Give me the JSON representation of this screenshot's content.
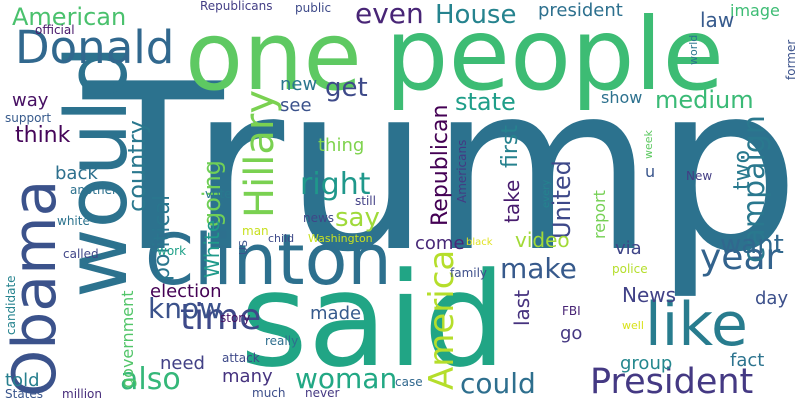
{
  "words": [
    {
      "text": "Trump",
      "color": "#2c728e",
      "rotate": false
    },
    {
      "text": "said",
      "color": "#21a585",
      "rotate": false
    },
    {
      "text": "people",
      "color": "#3dbc74",
      "rotate": false
    },
    {
      "text": "one",
      "color": "#5ec962",
      "rotate": false
    },
    {
      "text": "would",
      "color": "#2c728e",
      "rotate": true
    },
    {
      "text": "Clinton",
      "color": "#2d708e",
      "rotate": false
    },
    {
      "text": "Obama",
      "color": "#3b528b",
      "rotate": true
    },
    {
      "text": "like",
      "color": "#287c8e",
      "rotate": false
    },
    {
      "text": "Donald",
      "color": "#31688e",
      "rotate": false
    },
    {
      "text": "President",
      "color": "#443983",
      "rotate": false
    },
    {
      "text": "Hillary",
      "color": "#7ad151",
      "rotate": true
    },
    {
      "text": "time",
      "color": "#3e4989",
      "rotate": false
    },
    {
      "text": "year",
      "color": "#33638d",
      "rotate": false
    },
    {
      "text": "America",
      "color": "#b5de2b",
      "rotate": true
    },
    {
      "text": "campaign",
      "color": "#2a788e",
      "rotate": true
    },
    {
      "text": "right",
      "color": "#1f988b",
      "rotate": false
    },
    {
      "text": "say",
      "color": "#9fda3a",
      "rotate": false
    },
    {
      "text": "could",
      "color": "#2e6f8e",
      "rotate": false
    },
    {
      "text": "also",
      "color": "#35b779",
      "rotate": false
    },
    {
      "text": "woman",
      "color": "#22a884",
      "rotate": false
    },
    {
      "text": "know",
      "color": "#3b528b",
      "rotate": false
    },
    {
      "text": "make",
      "color": "#375a8c",
      "rotate": false
    },
    {
      "text": "want",
      "color": "#31688e",
      "rotate": false
    },
    {
      "text": "even",
      "color": "#482576",
      "rotate": false
    },
    {
      "text": "House",
      "color": "#25838e",
      "rotate": false
    },
    {
      "text": "state",
      "color": "#1f9e89",
      "rotate": false
    },
    {
      "text": "medium",
      "color": "#3aba76",
      "rotate": false
    },
    {
      "text": "American",
      "color": "#4ac16d",
      "rotate": false
    },
    {
      "text": "get",
      "color": "#3e4a89",
      "rotate": false
    },
    {
      "text": "country",
      "color": "#2a788e",
      "rotate": true
    },
    {
      "text": "going",
      "color": "#70cf57",
      "rotate": true
    },
    {
      "text": "Republican",
      "color": "#440154",
      "rotate": true
    },
    {
      "text": "United",
      "color": "#3e4989",
      "rotate": true
    },
    {
      "text": "think",
      "color": "#450559",
      "rotate": false
    },
    {
      "text": "political",
      "color": "#2a768e",
      "rotate": true
    },
    {
      "text": "video",
      "color": "#a2da37",
      "rotate": false
    },
    {
      "text": "two",
      "color": "#29798e",
      "rotate": true
    },
    {
      "text": "first",
      "color": "#26828e",
      "rotate": true
    },
    {
      "text": "take",
      "color": "#481c6e",
      "rotate": true
    },
    {
      "text": "last",
      "color": "#46327e",
      "rotate": true
    },
    {
      "text": "News",
      "color": "#414287",
      "rotate": false
    },
    {
      "text": "election",
      "color": "#440154",
      "rotate": false
    },
    {
      "text": "White",
      "color": "#1f9a8a",
      "rotate": true
    },
    {
      "text": "made",
      "color": "#375b8d",
      "rotate": false
    },
    {
      "text": "need",
      "color": "#424186",
      "rotate": false
    },
    {
      "text": "fact",
      "color": "#2c738e",
      "rotate": false
    },
    {
      "text": "group",
      "color": "#24878e",
      "rotate": false
    },
    {
      "text": "many",
      "color": "#46337f",
      "rotate": false
    },
    {
      "text": "day",
      "color": "#3c508b",
      "rotate": false
    },
    {
      "text": "told",
      "color": "#277f8e",
      "rotate": false
    },
    {
      "text": "come",
      "color": "#482878",
      "rotate": false
    },
    {
      "text": "via",
      "color": "#404688",
      "rotate": false
    },
    {
      "text": "go",
      "color": "#453882",
      "rotate": false
    },
    {
      "text": "back",
      "color": "#2d708e",
      "rotate": false
    },
    {
      "text": "thing",
      "color": "#7fd34e",
      "rotate": false
    },
    {
      "text": "way",
      "color": "#471063",
      "rotate": false
    },
    {
      "text": "see",
      "color": "#3b528b",
      "rotate": false
    },
    {
      "text": "new",
      "color": "#2a768e",
      "rotate": false
    },
    {
      "text": "law",
      "color": "#375b8d",
      "rotate": false
    },
    {
      "text": "president",
      "color": "#2d708e",
      "rotate": false
    },
    {
      "text": "image",
      "color": "#3dbc74",
      "rotate": false
    },
    {
      "text": "show",
      "color": "#2d718e",
      "rotate": false
    },
    {
      "text": "report",
      "color": "#75d054",
      "rotate": true
    },
    {
      "text": "government",
      "color": "#52c569",
      "rotate": true
    },
    {
      "text": "u",
      "color": "#39558c",
      "rotate": false
    },
    {
      "text": "Republicans",
      "color": "#433e85",
      "rotate": false
    },
    {
      "text": "public",
      "color": "#3e4a89",
      "rotate": false
    },
    {
      "text": "official",
      "color": "#48186a",
      "rotate": false
    },
    {
      "text": "support",
      "color": "#375a8c",
      "rotate": false
    },
    {
      "text": "another",
      "color": "#2d718e",
      "rotate": false
    },
    {
      "text": "white",
      "color": "#2c738e",
      "rotate": false
    },
    {
      "text": "called",
      "color": "#404688",
      "rotate": false
    },
    {
      "text": "vote",
      "color": "#29798e",
      "rotate": false
    },
    {
      "text": "work",
      "color": "#1fa088",
      "rotate": false
    },
    {
      "text": "story",
      "color": "#471164",
      "rotate": false
    },
    {
      "text": "attack",
      "color": "#3e4989",
      "rotate": false
    },
    {
      "text": "really",
      "color": "#2e6e8e",
      "rotate": false
    },
    {
      "text": "man",
      "color": "#c8e020",
      "rotate": false
    },
    {
      "text": "news",
      "color": "#3f4788",
      "rotate": false
    },
    {
      "text": "still",
      "color": "#424086",
      "rotate": false
    },
    {
      "text": "Americans",
      "color": "#443983",
      "rotate": true
    },
    {
      "text": "week",
      "color": "#5ec962",
      "rotate": true
    },
    {
      "text": "every",
      "color": "#25838e",
      "rotate": true
    },
    {
      "text": "New",
      "color": "#433d84",
      "rotate": false
    },
    {
      "text": "family",
      "color": "#3d4e8a",
      "rotate": false
    },
    {
      "text": "police",
      "color": "#b5de2b",
      "rotate": false
    },
    {
      "text": "FBI",
      "color": "#482475",
      "rotate": false
    },
    {
      "text": "well",
      "color": "#d8e219",
      "rotate": false
    },
    {
      "text": "black",
      "color": "#e0e221",
      "rotate": false
    },
    {
      "text": "Washington",
      "color": "#c8e020",
      "rotate": false
    },
    {
      "text": "child",
      "color": "#3e4a89",
      "rotate": false
    },
    {
      "text": "US",
      "color": "#3b528b",
      "rotate": true
    },
    {
      "text": "candidate",
      "color": "#25838e",
      "rotate": true
    },
    {
      "text": "States",
      "color": "#39558c",
      "rotate": false
    },
    {
      "text": "million",
      "color": "#472d7b",
      "rotate": false
    },
    {
      "text": "much",
      "color": "#3d4e8a",
      "rotate": false
    },
    {
      "text": "never",
      "color": "#453882",
      "rotate": false
    },
    {
      "text": "case",
      "color": "#31688e",
      "rotate": false
    },
    {
      "text": "world",
      "color": "#2a768e",
      "rotate": true
    },
    {
      "text": "former",
      "color": "#3b528b",
      "rotate": true
    }
  ]
}
